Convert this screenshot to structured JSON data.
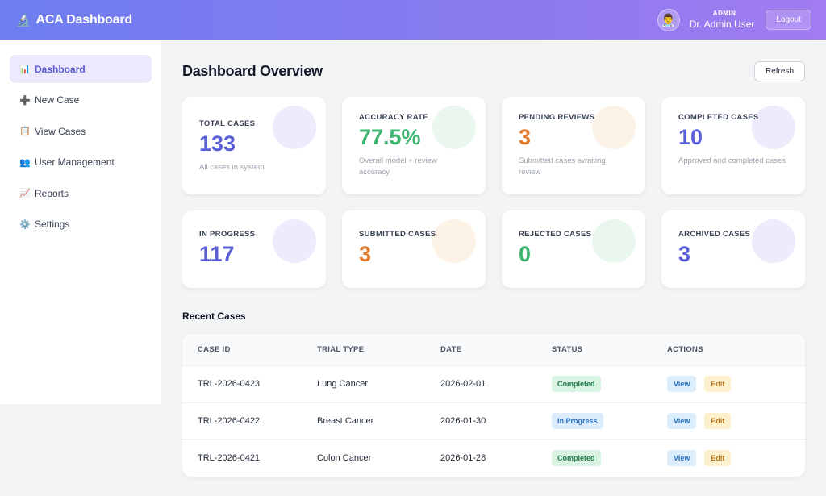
{
  "header": {
    "brand_icon": "🔬",
    "brand_title": "ACA Dashboard",
    "avatar_icon": "👨‍⚕️",
    "user_role": "ADMIN",
    "user_name": "Dr. Admin User",
    "logout_label": "Logout"
  },
  "sidebar": {
    "items": [
      {
        "icon": "📊",
        "label": "Dashboard",
        "active": true
      },
      {
        "icon": "➕",
        "label": "New Case"
      },
      {
        "icon": "📋",
        "label": "View Cases"
      },
      {
        "icon": "👥",
        "label": "User Management"
      },
      {
        "icon": "📈",
        "label": "Reports"
      },
      {
        "icon": "⚙️",
        "label": "Settings"
      }
    ]
  },
  "main": {
    "title": "Dashboard Overview",
    "refresh_label": "Refresh",
    "stats": [
      {
        "label": "TOTAL CASES",
        "value": "133",
        "sub": "All cases in system",
        "color": "#5a5fd8"
      },
      {
        "label": "ACCURACY RATE",
        "value": "77.5%",
        "sub": "Overall model + review accuracy",
        "color": "#3db470"
      },
      {
        "label": "PENDING REVIEWS",
        "value": "3",
        "sub": "Submitted cases awaiting review",
        "color": "#e07b2e"
      },
      {
        "label": "COMPLETED CASES",
        "value": "10",
        "sub": "Approved and completed cases",
        "color": "#5a5fd8"
      },
      {
        "label": "IN PROGRESS",
        "value": "117",
        "color": "#5a5fd8"
      },
      {
        "label": "SUBMITTED CASES",
        "value": "3",
        "color": "#e07b2e"
      },
      {
        "label": "REJECTED CASES",
        "value": "0",
        "color": "#3db470"
      },
      {
        "label": "ARCHIVED CASES",
        "value": "3",
        "color": "#5a5fd8"
      }
    ],
    "recent_title": "Recent Cases",
    "table": {
      "headers": [
        "CASE ID",
        "TRIAL TYPE",
        "DATE",
        "STATUS",
        "ACTIONS"
      ],
      "rows": [
        {
          "case_id": "TRL-2026-0423",
          "trial_type": "Lung Cancer",
          "date": "2026-02-01",
          "status": "Completed",
          "view": "View",
          "edit": "Edit"
        },
        {
          "case_id": "TRL-2026-0422",
          "trial_type": "Breast Cancer",
          "date": "2026-01-30",
          "status": "In Progress",
          "view": "View",
          "edit": "Edit"
        },
        {
          "case_id": "TRL-2026-0421",
          "trial_type": "Colon Cancer",
          "date": "2026-01-28",
          "status": "Completed",
          "view": "View",
          "edit": "Edit"
        }
      ]
    }
  }
}
